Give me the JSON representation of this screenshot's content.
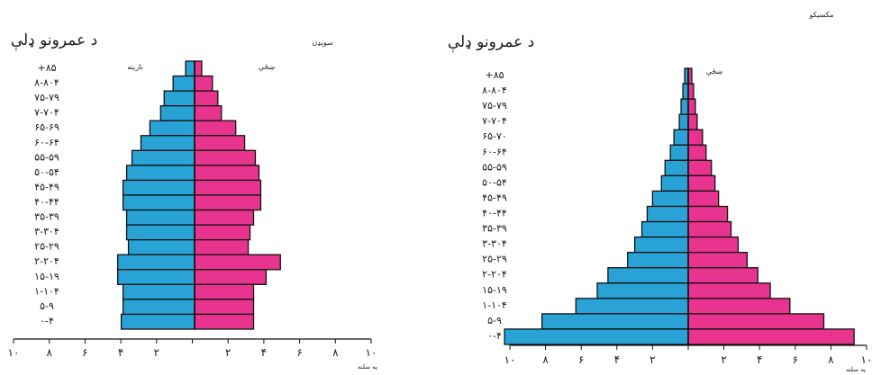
{
  "colors": {
    "male": "#29a3d6",
    "female": "#e8348f",
    "outline": "#111111"
  },
  "chart_data": [
    {
      "type": "bar",
      "orientation": "horizontal-population-pyramid",
      "title": "سویډن",
      "axis_title": "د عمرونو ډلې",
      "xlabel": "په سلنه",
      "male_label": "نارینه",
      "female_label": "ښځې",
      "xlim": [
        -10,
        10
      ],
      "x_tick_labels": [
        "١٠",
        "٨",
        "۶",
        "۴",
        "٢",
        "",
        "٢",
        "۴",
        "۶",
        "٨",
        "١٠"
      ],
      "categories": [
        "+٨۵",
        "٨٠-٨۴",
        "٧۵-٧٩",
        "٧٠-٧۴",
        "۶۵-۶٩",
        "۶٠-۶۴",
        "۵۵-۵٩",
        "۵٠-۵۴",
        "۴۵-۴٩",
        "۴٠-۴۴",
        "٣۵-٣٩",
        "٣٠-٣۴",
        "٢۵-٢٩",
        "٢٠-٢۴",
        "١۵-١٩",
        "١٠-١۴",
        "۵-٩",
        "٠-۴"
      ],
      "series": [
        {
          "name": "نارینه",
          "side": "left",
          "values": [
            0.5,
            1.2,
            1.7,
            1.9,
            2.5,
            3.0,
            3.5,
            3.8,
            4.0,
            4.0,
            3.8,
            3.8,
            3.7,
            4.3,
            4.3,
            4.0,
            4.0,
            4.1
          ]
        },
        {
          "name": "ښځې",
          "side": "right",
          "values": [
            0.4,
            1.0,
            1.3,
            1.5,
            2.3,
            2.8,
            3.4,
            3.6,
            3.7,
            3.7,
            3.3,
            3.1,
            3.0,
            4.8,
            4.0,
            3.3,
            3.3,
            3.3
          ]
        }
      ]
    },
    {
      "type": "bar",
      "orientation": "horizontal-population-pyramid",
      "title": "مکسیکو",
      "axis_title": "د عمرونو ډلې",
      "xlabel": "په سلنه",
      "female_label": "ښځې",
      "xlim": [
        -10,
        10
      ],
      "x_tick_labels": [
        "١٠",
        "٨",
        "۶",
        "۴",
        "٢",
        "",
        "٢",
        "۴",
        "۶",
        "٨",
        "١٠"
      ],
      "categories": [
        "+٨۵",
        "٨٠-٨۴",
        "٧۵-٧٩",
        "٧٠-٧۴",
        "۶۵-٧٠",
        "۶٠-۶۴",
        "۵۵-۵٩",
        "۵٠-۵۴",
        "۴۵-۴٩",
        "۴٠-۴۴",
        "٣۵-٣٩",
        "٣٠-٣۴",
        "٢۵-٢٩",
        "٢٠-٢۴",
        "١۵-١٩",
        "١٠-١۴",
        "۵-٩",
        "٠-۴"
      ],
      "series": [
        {
          "name": "نارینه",
          "side": "left",
          "values": [
            0.2,
            0.3,
            0.4,
            0.5,
            0.8,
            1.0,
            1.3,
            1.5,
            2.0,
            2.3,
            2.6,
            3.0,
            3.4,
            4.5,
            5.1,
            6.3,
            8.2,
            10.3
          ]
        },
        {
          "name": "ښځې",
          "side": "right",
          "values": [
            0.2,
            0.3,
            0.4,
            0.5,
            0.8,
            1.0,
            1.3,
            1.5,
            1.7,
            2.2,
            2.4,
            2.8,
            3.3,
            3.9,
            4.6,
            5.7,
            7.6,
            9.3
          ]
        }
      ]
    }
  ]
}
